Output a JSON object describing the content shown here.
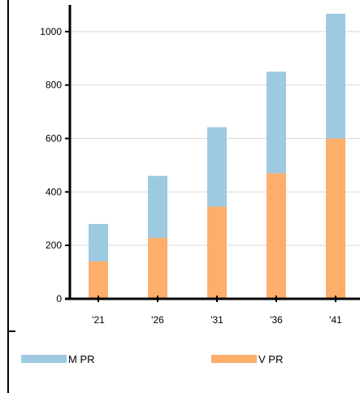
{
  "chart_data": {
    "type": "bar",
    "stacked": true,
    "categories": [
      "'21",
      "'26",
      "'31",
      "'36",
      "'41"
    ],
    "series": [
      {
        "name": "V PR",
        "values": [
          140,
          228,
          345,
          470,
          600
        ],
        "color": "#FDAE6B"
      },
      {
        "name": "M PR",
        "values": [
          140,
          232,
          297,
          380,
          467
        ],
        "color": "#9ECAE1"
      }
    ],
    "yticks": [
      0,
      200,
      400,
      600,
      800,
      1000
    ],
    "ylim": [
      0,
      1100
    ],
    "grid": true,
    "legend_position": "bottom"
  },
  "legend": {
    "items": [
      {
        "label": "M PR",
        "color": "#9ECAE1"
      },
      {
        "label": "V PR",
        "color": "#FDAE6B"
      }
    ]
  }
}
